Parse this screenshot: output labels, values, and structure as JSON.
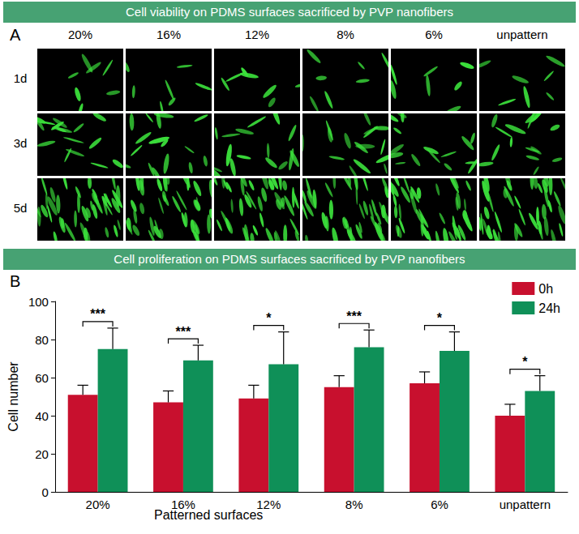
{
  "panel_a": {
    "banner": "Cell viability on PDMS surfaces sacrificed by PVP nanofibers",
    "label": "A",
    "columns": [
      "20%",
      "16%",
      "12%",
      "8%",
      "6%",
      "unpattern"
    ],
    "rows": [
      "1d",
      "3d",
      "5d"
    ]
  },
  "chart_data": {
    "type": "bar",
    "banner": "Cell proliferation on PDMS surfaces sacrificed by PVP nanofibers",
    "label": "B",
    "categories": [
      "20%",
      "16%",
      "12%",
      "8%",
      "6%",
      "unpattern"
    ],
    "x_label": "Patterned surfaces",
    "y_label": "Cell number",
    "ylim": [
      0,
      100
    ],
    "yticks": [
      0,
      20,
      40,
      60,
      80,
      100
    ],
    "grid": false,
    "legend": "upper right",
    "series": [
      {
        "name": "0h",
        "color": "#c8102e",
        "values": [
          51,
          47,
          49,
          55,
          57,
          40
        ],
        "errors": [
          5,
          6,
          7,
          6,
          6,
          6
        ]
      },
      {
        "name": "24h",
        "color": "#0f9058",
        "values": [
          75,
          69,
          67,
          76,
          74,
          53
        ],
        "errors": [
          11,
          8,
          17,
          9,
          10,
          8
        ]
      }
    ],
    "significance": [
      "***",
      "***",
      "*",
      "***",
      "*",
      "*"
    ]
  }
}
